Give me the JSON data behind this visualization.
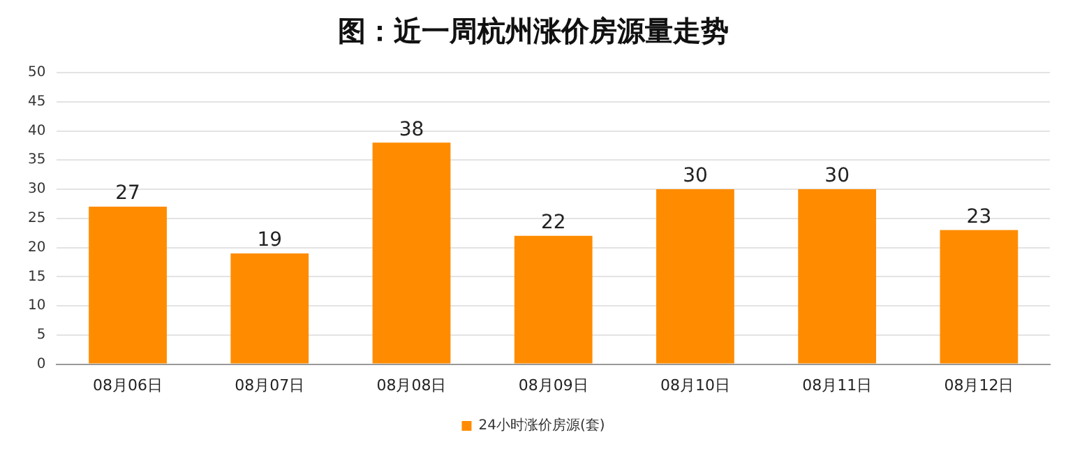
{
  "chart_data": {
    "type": "bar",
    "title": "图：近一周杭州涨价房源量走势",
    "categories": [
      "08月06日",
      "08月07日",
      "08月08日",
      "08月09日",
      "08月10日",
      "08月11日",
      "08月12日"
    ],
    "series": [
      {
        "name": "24小时涨价房源(套)",
        "color": "#ff8c00",
        "values": [
          27,
          19,
          38,
          22,
          30,
          30,
          23
        ]
      }
    ],
    "ylim": [
      0,
      50
    ],
    "yticks": [
      0,
      5,
      10,
      15,
      20,
      25,
      30,
      35,
      40,
      45,
      50
    ],
    "grid": "y",
    "legend": "bottom",
    "data_labels": true
  }
}
